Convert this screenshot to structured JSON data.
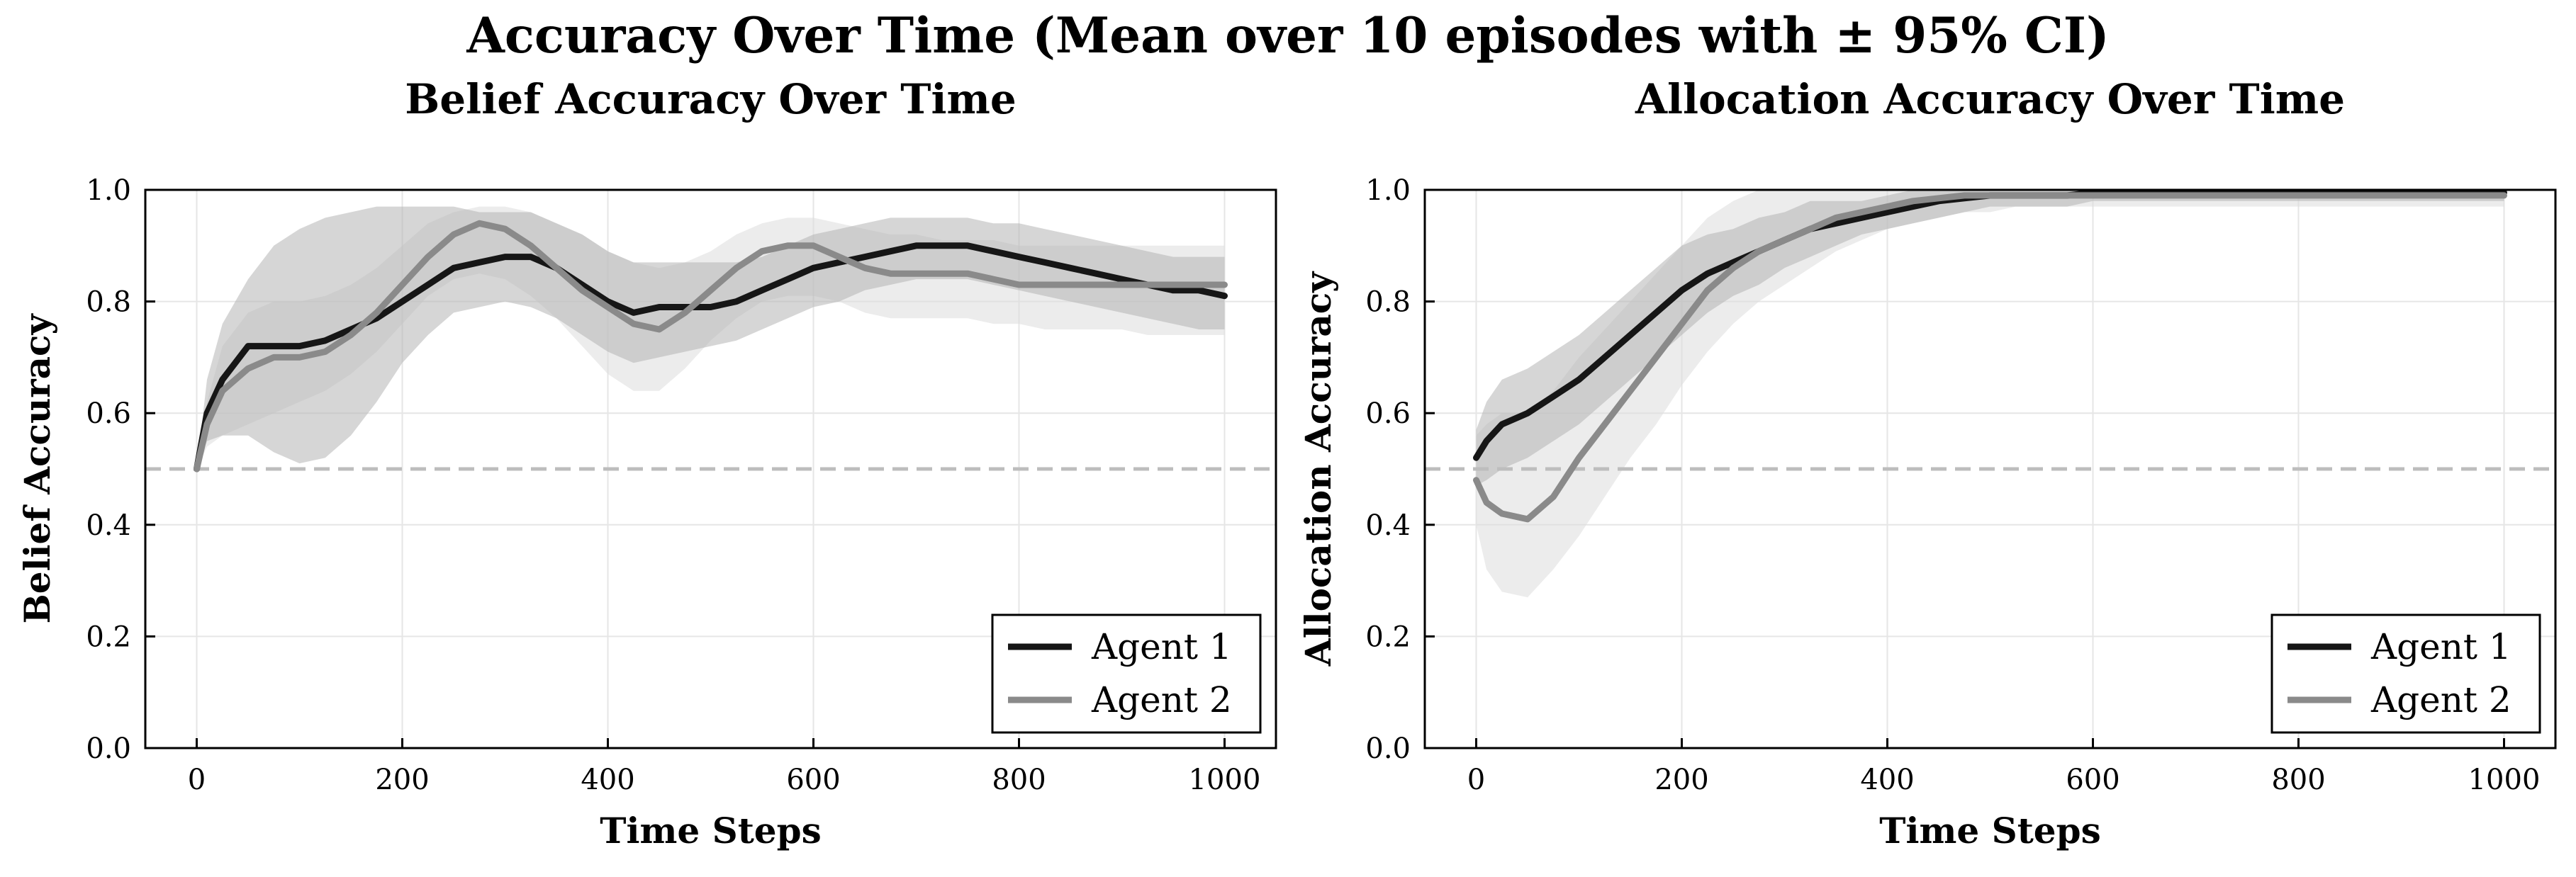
{
  "figure": {
    "suptitle": "Accuracy Over Time (Mean over 10 episodes with ± 95% CI)"
  },
  "colors": {
    "agent1": "#161616",
    "agent2": "#8a8a8a",
    "band_agent1": "#b4b4b4",
    "band_agent2": "#dcdcdc",
    "reference_line": "#bdbdbd",
    "grid": "#e6e6e6"
  },
  "chart_data": [
    {
      "type": "line",
      "title": "Belief Accuracy Over Time",
      "xlabel": "Time Steps",
      "ylabel": "Belief Accuracy",
      "xlim": [
        -50,
        1050
      ],
      "ylim": [
        0.0,
        1.0
      ],
      "xticks": [
        0,
        200,
        400,
        600,
        800,
        1000
      ],
      "yticks": [
        "0.0",
        "0.2",
        "0.4",
        "0.6",
        "0.8",
        "1.0"
      ],
      "grid": true,
      "legend_position": "lower-right",
      "reference_line": 0.5,
      "x": [
        0,
        10,
        25,
        50,
        75,
        100,
        125,
        150,
        175,
        200,
        225,
        250,
        275,
        300,
        325,
        350,
        375,
        400,
        425,
        450,
        475,
        500,
        525,
        550,
        575,
        600,
        625,
        650,
        675,
        700,
        725,
        750,
        775,
        800,
        825,
        850,
        875,
        900,
        925,
        950,
        975,
        1000
      ],
      "series": [
        {
          "name": "Agent 1",
          "values": [
            0.5,
            0.6,
            0.66,
            0.72,
            0.72,
            0.72,
            0.73,
            0.75,
            0.77,
            0.8,
            0.83,
            0.86,
            0.87,
            0.88,
            0.88,
            0.86,
            0.83,
            0.8,
            0.78,
            0.79,
            0.79,
            0.79,
            0.8,
            0.82,
            0.84,
            0.86,
            0.87,
            0.88,
            0.89,
            0.9,
            0.9,
            0.9,
            0.89,
            0.88,
            0.87,
            0.86,
            0.85,
            0.84,
            0.83,
            0.82,
            0.82,
            0.81
          ],
          "ci_lower": [
            0.5,
            0.55,
            0.56,
            0.56,
            0.53,
            0.51,
            0.52,
            0.56,
            0.62,
            0.69,
            0.74,
            0.78,
            0.79,
            0.8,
            0.79,
            0.77,
            0.74,
            0.71,
            0.69,
            0.7,
            0.71,
            0.72,
            0.73,
            0.75,
            0.77,
            0.79,
            0.8,
            0.82,
            0.83,
            0.84,
            0.84,
            0.84,
            0.83,
            0.82,
            0.81,
            0.8,
            0.79,
            0.78,
            0.77,
            0.76,
            0.75,
            0.75
          ],
          "ci_upper": [
            0.5,
            0.66,
            0.76,
            0.84,
            0.9,
            0.93,
            0.95,
            0.96,
            0.97,
            0.97,
            0.97,
            0.97,
            0.96,
            0.96,
            0.96,
            0.94,
            0.92,
            0.89,
            0.87,
            0.87,
            0.87,
            0.87,
            0.87,
            0.88,
            0.9,
            0.92,
            0.93,
            0.94,
            0.95,
            0.95,
            0.95,
            0.95,
            0.94,
            0.94,
            0.93,
            0.92,
            0.91,
            0.9,
            0.89,
            0.88,
            0.88,
            0.88
          ]
        },
        {
          "name": "Agent 2",
          "values": [
            0.5,
            0.58,
            0.64,
            0.68,
            0.7,
            0.7,
            0.71,
            0.74,
            0.78,
            0.83,
            0.88,
            0.92,
            0.94,
            0.93,
            0.9,
            0.86,
            0.82,
            0.79,
            0.76,
            0.75,
            0.78,
            0.82,
            0.86,
            0.89,
            0.9,
            0.9,
            0.88,
            0.86,
            0.85,
            0.85,
            0.85,
            0.85,
            0.84,
            0.83,
            0.83,
            0.83,
            0.83,
            0.83,
            0.83,
            0.83,
            0.83,
            0.83
          ],
          "ci_lower": [
            0.5,
            0.54,
            0.56,
            0.58,
            0.6,
            0.62,
            0.64,
            0.67,
            0.71,
            0.76,
            0.81,
            0.84,
            0.85,
            0.84,
            0.81,
            0.77,
            0.72,
            0.67,
            0.64,
            0.64,
            0.68,
            0.73,
            0.77,
            0.8,
            0.81,
            0.81,
            0.8,
            0.78,
            0.77,
            0.77,
            0.77,
            0.77,
            0.76,
            0.76,
            0.75,
            0.75,
            0.75,
            0.75,
            0.74,
            0.74,
            0.74,
            0.74
          ],
          "ci_upper": [
            0.5,
            0.62,
            0.72,
            0.78,
            0.8,
            0.8,
            0.81,
            0.83,
            0.86,
            0.9,
            0.94,
            0.96,
            0.97,
            0.97,
            0.96,
            0.94,
            0.92,
            0.89,
            0.87,
            0.86,
            0.87,
            0.89,
            0.92,
            0.94,
            0.95,
            0.95,
            0.94,
            0.93,
            0.92,
            0.92,
            0.91,
            0.91,
            0.91,
            0.9,
            0.9,
            0.9,
            0.9,
            0.9,
            0.9,
            0.9,
            0.9,
            0.9
          ]
        }
      ]
    },
    {
      "type": "line",
      "title": "Allocation Accuracy Over Time",
      "xlabel": "Time Steps",
      "ylabel": "Allocation Accuracy",
      "xlim": [
        -50,
        1050
      ],
      "ylim": [
        0.0,
        1.0
      ],
      "xticks": [
        0,
        200,
        400,
        600,
        800,
        1000
      ],
      "yticks": [
        "0.0",
        "0.2",
        "0.4",
        "0.6",
        "0.8",
        "1.0"
      ],
      "grid": true,
      "legend_position": "lower-right",
      "reference_line": 0.5,
      "x": [
        0,
        10,
        25,
        50,
        75,
        100,
        125,
        150,
        175,
        200,
        225,
        250,
        275,
        300,
        325,
        350,
        375,
        400,
        425,
        450,
        475,
        500,
        525,
        550,
        575,
        600,
        625,
        650,
        675,
        700,
        725,
        750,
        775,
        800,
        825,
        850,
        875,
        900,
        925,
        950,
        975,
        1000
      ],
      "series": [
        {
          "name": "Agent 1",
          "values": [
            0.52,
            0.55,
            0.58,
            0.6,
            0.63,
            0.66,
            0.7,
            0.74,
            0.78,
            0.82,
            0.85,
            0.87,
            0.89,
            0.91,
            0.93,
            0.94,
            0.95,
            0.96,
            0.97,
            0.98,
            0.985,
            0.99,
            0.99,
            0.99,
            0.99,
            0.995,
            0.995,
            0.995,
            0.995,
            0.995,
            0.995,
            0.995,
            0.995,
            0.995,
            0.995,
            0.995,
            0.995,
            0.995,
            0.995,
            0.995,
            0.995,
            0.995
          ],
          "ci_lower": [
            0.47,
            0.48,
            0.5,
            0.52,
            0.55,
            0.58,
            0.62,
            0.66,
            0.7,
            0.74,
            0.78,
            0.81,
            0.83,
            0.86,
            0.88,
            0.9,
            0.92,
            0.93,
            0.94,
            0.95,
            0.96,
            0.97,
            0.97,
            0.97,
            0.97,
            0.98,
            0.98,
            0.98,
            0.98,
            0.98,
            0.98,
            0.98,
            0.98,
            0.98,
            0.98,
            0.98,
            0.98,
            0.98,
            0.98,
            0.98,
            0.98,
            0.98
          ],
          "ci_upper": [
            0.57,
            0.62,
            0.66,
            0.68,
            0.71,
            0.74,
            0.78,
            0.82,
            0.86,
            0.9,
            0.92,
            0.93,
            0.95,
            0.96,
            0.98,
            0.98,
            0.98,
            0.99,
            1.0,
            1.0,
            1.0,
            1.0,
            1.0,
            1.0,
            1.0,
            1.0,
            1.0,
            1.0,
            1.0,
            1.0,
            1.0,
            1.0,
            1.0,
            1.0,
            1.0,
            1.0,
            1.0,
            1.0,
            1.0,
            1.0,
            1.0,
            1.0
          ]
        },
        {
          "name": "Agent 2",
          "values": [
            0.48,
            0.44,
            0.42,
            0.41,
            0.45,
            0.52,
            0.58,
            0.64,
            0.7,
            0.76,
            0.82,
            0.86,
            0.89,
            0.91,
            0.93,
            0.95,
            0.96,
            0.97,
            0.98,
            0.985,
            0.99,
            0.99,
            0.99,
            0.99,
            0.99,
            0.99,
            0.99,
            0.99,
            0.99,
            0.99,
            0.99,
            0.99,
            0.99,
            0.99,
            0.99,
            0.99,
            0.99,
            0.99,
            0.99,
            0.99,
            0.99,
            0.99
          ],
          "ci_lower": [
            0.4,
            0.32,
            0.28,
            0.27,
            0.32,
            0.38,
            0.45,
            0.52,
            0.58,
            0.65,
            0.71,
            0.76,
            0.8,
            0.83,
            0.86,
            0.89,
            0.91,
            0.93,
            0.94,
            0.95,
            0.96,
            0.96,
            0.97,
            0.97,
            0.97,
            0.97,
            0.97,
            0.97,
            0.97,
            0.97,
            0.97,
            0.97,
            0.97,
            0.97,
            0.97,
            0.97,
            0.97,
            0.97,
            0.97,
            0.97,
            0.97,
            0.97
          ],
          "ci_upper": [
            0.56,
            0.58,
            0.6,
            0.6,
            0.64,
            0.7,
            0.75,
            0.8,
            0.85,
            0.9,
            0.95,
            0.98,
            1.0,
            1.0,
            1.0,
            1.0,
            1.0,
            1.0,
            1.0,
            1.0,
            1.0,
            1.0,
            1.0,
            1.0,
            1.0,
            1.0,
            1.0,
            1.0,
            1.0,
            1.0,
            1.0,
            1.0,
            1.0,
            1.0,
            1.0,
            1.0,
            1.0,
            1.0,
            1.0,
            1.0,
            1.0,
            1.0
          ]
        }
      ]
    }
  ]
}
